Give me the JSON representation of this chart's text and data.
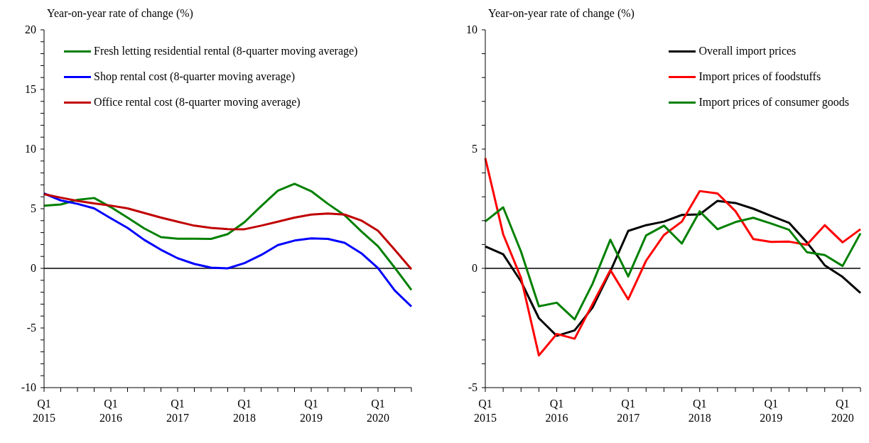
{
  "chart_data": [
    {
      "type": "line",
      "ylabel": "Year-on-year rate of change (%)",
      "legend": "top left",
      "grid": false,
      "marker": "none",
      "line_style": "solid",
      "categories": [
        "Q1\n2015",
        null,
        null,
        null,
        "Q1\n2016",
        null,
        null,
        null,
        "Q1\n2017",
        null,
        null,
        null,
        "Q1\n2018",
        null,
        null,
        null,
        "Q1\n2019",
        null,
        null,
        null,
        "Q1\n2020",
        null,
        null
      ],
      "ylim": [
        -10,
        20
      ],
      "yticks": [
        -10,
        {
          "value": -9,
          "label": null
        },
        {
          "value": -8,
          "label": null
        },
        {
          "value": -7,
          "label": null
        },
        {
          "value": -6,
          "label": null
        },
        -5,
        {
          "value": -4,
          "label": null
        },
        {
          "value": -3,
          "label": null
        },
        {
          "value": -2,
          "label": null
        },
        {
          "value": -1,
          "label": null
        },
        0,
        {
          "value": 1,
          "label": null
        },
        {
          "value": 2,
          "label": null
        },
        {
          "value": 3,
          "label": null
        },
        {
          "value": 4,
          "label": null
        },
        5,
        {
          "value": 6,
          "label": null
        },
        {
          "value": 7,
          "label": null
        },
        {
          "value": 8,
          "label": null
        },
        {
          "value": 9,
          "label": null
        },
        10,
        {
          "value": 11,
          "label": null
        },
        {
          "value": 12,
          "label": null
        },
        {
          "value": 13,
          "label": null
        },
        {
          "value": 14,
          "label": null
        },
        15,
        {
          "value": 16,
          "label": null
        },
        {
          "value": 17,
          "label": null
        },
        {
          "value": 18,
          "label": null
        },
        {
          "value": 19,
          "label": null
        },
        20
      ],
      "ref_lines": [
        {
          "axis": "y",
          "value": 0,
          "color": "#000000"
        }
      ],
      "series": [
        {
          "name": "Fresh letting residential rental (8-quarter moving average)",
          "color": "#008000",
          "values": [
            5.26,
            5.36,
            5.74,
            5.9,
            5.13,
            4.26,
            3.35,
            2.62,
            2.49,
            2.49,
            2.47,
            2.87,
            3.87,
            5.22,
            6.51,
            7.09,
            6.47,
            5.41,
            4.45,
            3.1,
            1.85,
            0.06,
            -1.81
          ]
        },
        {
          "name": "Shop rental cost (8-quarter moving average)",
          "color": "#0000ff",
          "values": [
            6.28,
            5.7,
            5.41,
            5.03,
            4.2,
            3.39,
            2.39,
            1.56,
            0.85,
            0.37,
            0.06,
            0.0,
            0.44,
            1.12,
            1.95,
            2.33,
            2.52,
            2.47,
            2.14,
            1.27,
            0.02,
            -1.85,
            -3.2
          ]
        },
        {
          "name": "Office rental cost (8-quarter moving average)",
          "color": "#c00000",
          "values": [
            6.22,
            5.93,
            5.66,
            5.45,
            5.26,
            5.03,
            4.64,
            4.26,
            3.91,
            3.58,
            3.39,
            3.29,
            3.28,
            3.58,
            3.91,
            4.26,
            4.51,
            4.6,
            4.51,
            4.01,
            3.16,
            1.56,
            -0.08
          ]
        }
      ]
    },
    {
      "type": "line",
      "ylabel": "Year-on-year rate of change (%)",
      "legend": "top right",
      "grid": false,
      "marker": "none",
      "line_style": "solid",
      "categories": [
        "Q1\n2015",
        null,
        null,
        null,
        "Q1\n2016",
        null,
        null,
        null,
        "Q1\n2017",
        null,
        null,
        null,
        "Q1\n2018",
        null,
        null,
        null,
        "Q1\n2019",
        null,
        null,
        null,
        "Q1\n2020",
        null
      ],
      "ylim": [
        -5,
        10
      ],
      "yticks": [
        -5,
        {
          "value": -4,
          "label": null
        },
        {
          "value": -3,
          "label": null
        },
        {
          "value": -2,
          "label": null
        },
        {
          "value": -1,
          "label": null
        },
        0,
        {
          "value": 1,
          "label": null
        },
        {
          "value": 2,
          "label": null
        },
        {
          "value": 3,
          "label": null
        },
        {
          "value": 4,
          "label": null
        },
        5,
        {
          "value": 6,
          "label": null
        },
        {
          "value": 7,
          "label": null
        },
        {
          "value": 8,
          "label": null
        },
        {
          "value": 9,
          "label": null
        },
        10
      ],
      "ref_lines": [
        {
          "axis": "y",
          "value": 0,
          "color": "#000000"
        }
      ],
      "series": [
        {
          "name": "Overall import prices",
          "color": "#000000",
          "values": [
            0.92,
            0.59,
            -0.55,
            -2.09,
            -2.83,
            -2.6,
            -1.65,
            -0.12,
            1.57,
            1.81,
            1.96,
            2.24,
            2.26,
            2.83,
            2.74,
            2.5,
            2.2,
            1.91,
            1.09,
            0.13,
            -0.36,
            -1.03
          ]
        },
        {
          "name": "Import prices of foodstuffs",
          "color": "#ff0000",
          "values": [
            4.62,
            1.43,
            -0.4,
            -3.65,
            -2.75,
            -2.95,
            -1.5,
            -0.07,
            -1.3,
            0.32,
            1.4,
            1.96,
            3.24,
            3.14,
            2.4,
            1.23,
            1.11,
            1.12,
            0.99,
            1.81,
            1.09,
            1.64
          ]
        },
        {
          "name": "Import prices of consumer goods",
          "color": "#008000",
          "values": [
            1.97,
            2.56,
            0.7,
            -1.59,
            -1.44,
            -2.14,
            -0.65,
            1.2,
            -0.34,
            1.38,
            1.79,
            1.04,
            2.39,
            1.64,
            1.94,
            2.12,
            1.88,
            1.62,
            0.68,
            0.56,
            0.1,
            1.47
          ]
        }
      ]
    }
  ]
}
